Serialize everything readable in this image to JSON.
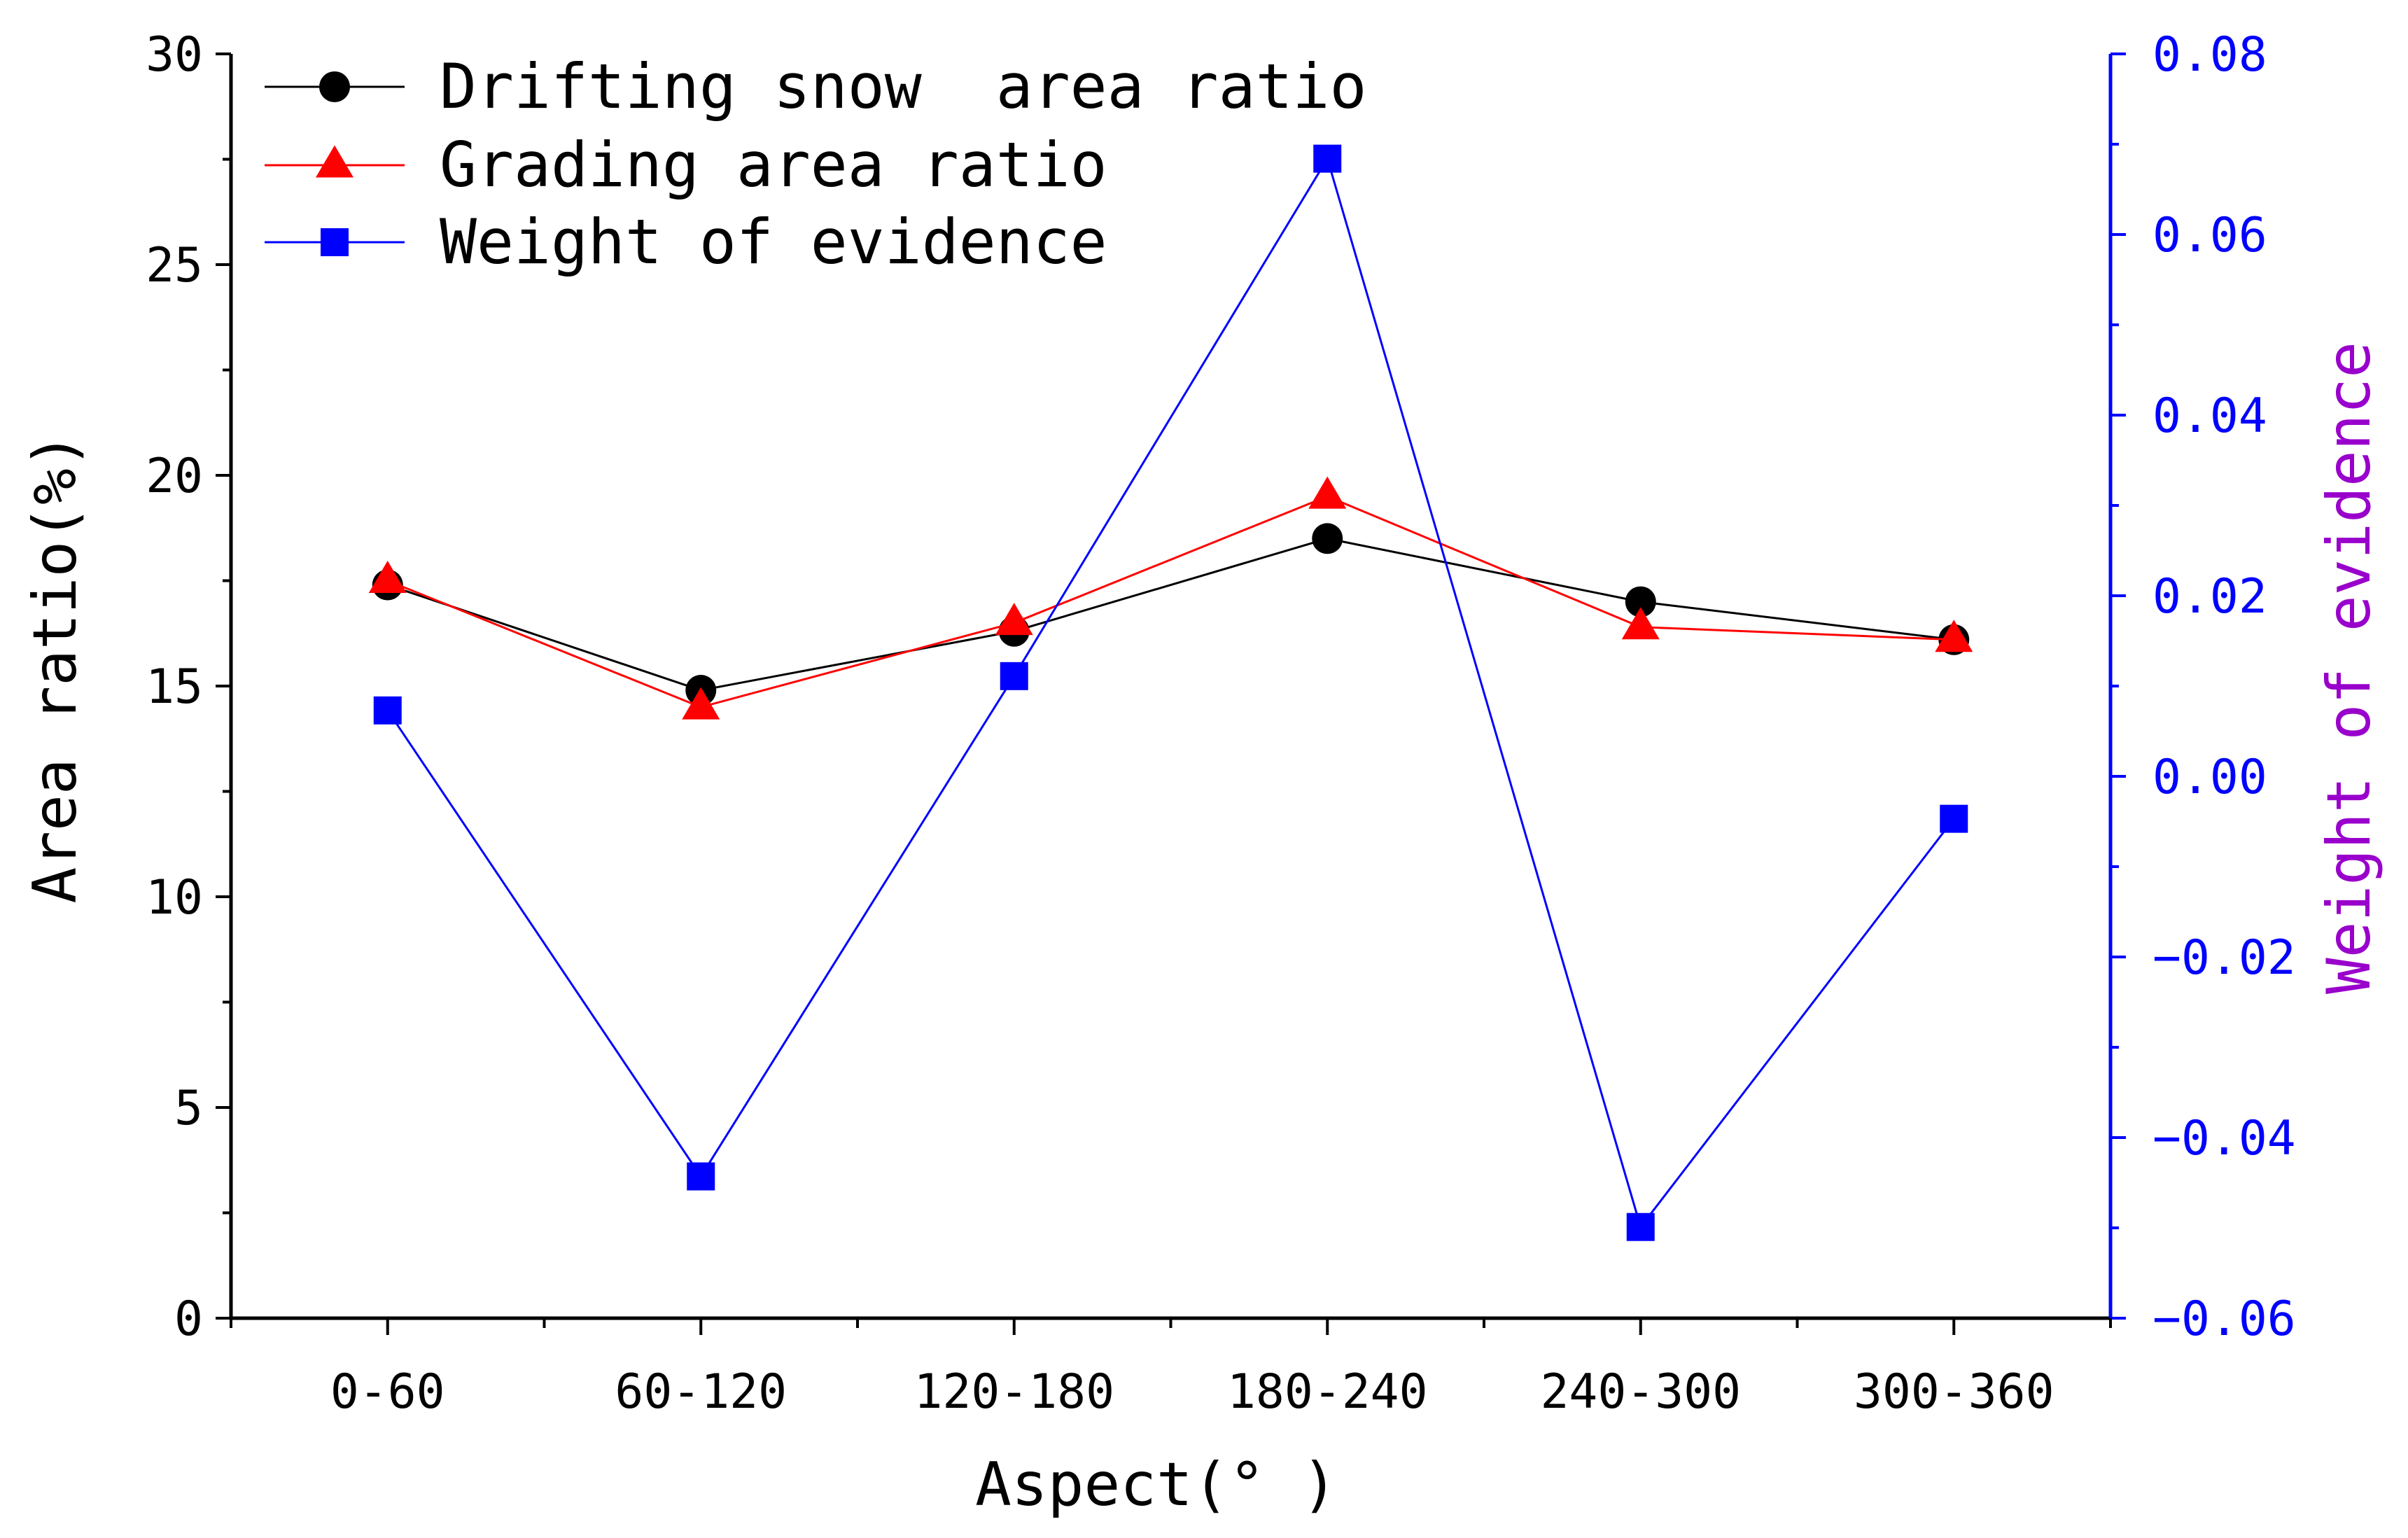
{
  "chart_data": {
    "type": "line",
    "title": "",
    "xlabel": "Aspect(° )",
    "ylabel": "Area ratio(%)",
    "y2label": "Weight of evidence",
    "categories": [
      "0-60",
      "60-120",
      "120-180",
      "180-240",
      "240-300",
      "300-360"
    ],
    "ylim": [
      0,
      30
    ],
    "y2lim": [
      -0.06,
      0.08
    ],
    "yticks": [
      "0",
      "5",
      "10",
      "15",
      "20",
      "25",
      "30"
    ],
    "y2ticks": [
      "-0.06",
      "-0.04",
      "-0.02",
      "0.00",
      "0.02",
      "0.04",
      "0.06",
      "0.08"
    ],
    "legend_position": "top-left",
    "series": [
      {
        "name": "Drifting snow  area ratio",
        "axis": "left",
        "marker": "circle",
        "color": "#000000",
        "values": [
          17.4,
          14.9,
          16.3,
          18.5,
          17.0,
          16.1
        ]
      },
      {
        "name": "Grading area ratio",
        "axis": "left",
        "marker": "triangle",
        "color": "#ff0000",
        "values": [
          17.5,
          14.5,
          16.5,
          19.5,
          16.4,
          16.1
        ]
      },
      {
        "name": "Weight of evidence",
        "axis": "right",
        "marker": "square",
        "color": "#0000ff",
        "values": [
          0.0073,
          -0.0443,
          0.0111,
          0.0684,
          -0.0499,
          -0.0047
        ]
      }
    ]
  },
  "colors": {
    "axis_left": "#000000",
    "axis_right": "#0000ff",
    "y2label": "#9900cc"
  }
}
